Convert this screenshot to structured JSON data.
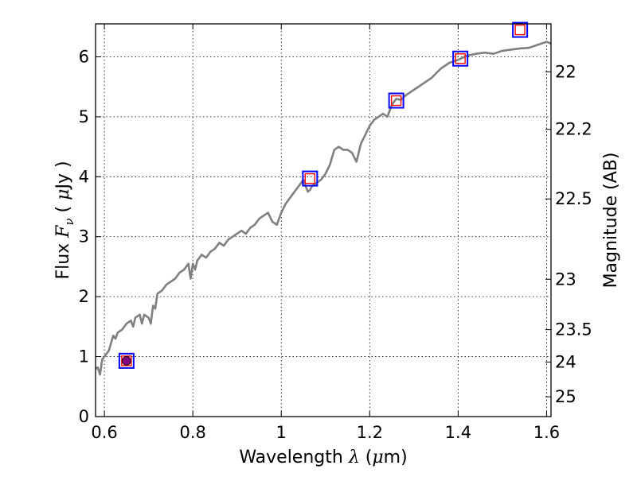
{
  "chart_data": {
    "type": "line",
    "xlabel": "Wavelength  λ (μm)",
    "ylabel": "Flux  F_ν  ( μJy )",
    "y2label": "Magnitude (AB)",
    "xlim": [
      0.58,
      1.61
    ],
    "ylim": [
      0,
      6.55
    ],
    "grid": true,
    "x_ticks": [
      0.6,
      0.8,
      1.0,
      1.2,
      1.4,
      1.6
    ],
    "x_tick_labels": [
      "0.6",
      "0.8",
      "1",
      "1.2",
      "1.4",
      "1.6"
    ],
    "y_ticks": [
      0,
      1,
      2,
      3,
      4,
      5,
      6
    ],
    "y_tick_labels": [
      "0",
      "1",
      "2",
      "3",
      "4",
      "5",
      "6"
    ],
    "y2_ticks": [
      {
        "label": "22",
        "flux": 5.75
      },
      {
        "label": "22.2",
        "flux": 4.79
      },
      {
        "label": "22.5",
        "flux": 3.63
      },
      {
        "label": "23",
        "flux": 2.29
      },
      {
        "label": "23.5",
        "flux": 1.45
      },
      {
        "label": "24",
        "flux": 0.91
      },
      {
        "label": "25",
        "flux": 0.33
      }
    ],
    "series": [
      {
        "style": "line",
        "color": "#808080",
        "x": [
          0.58,
          0.585,
          0.59,
          0.595,
          0.6,
          0.61,
          0.62,
          0.625,
          0.63,
          0.64,
          0.65,
          0.66,
          0.665,
          0.67,
          0.68,
          0.685,
          0.69,
          0.7,
          0.705,
          0.71,
          0.715,
          0.72,
          0.73,
          0.74,
          0.75,
          0.76,
          0.77,
          0.78,
          0.79,
          0.795,
          0.8,
          0.805,
          0.81,
          0.82,
          0.83,
          0.84,
          0.85,
          0.86,
          0.87,
          0.88,
          0.89,
          0.9,
          0.91,
          0.92,
          0.93,
          0.94,
          0.95,
          0.96,
          0.97,
          0.98,
          0.99,
          1.0,
          1.01,
          1.02,
          1.03,
          1.04,
          1.05,
          1.06,
          1.065,
          1.07,
          1.08,
          1.09,
          1.1,
          1.11,
          1.12,
          1.13,
          1.14,
          1.15,
          1.16,
          1.17,
          1.18,
          1.19,
          1.2,
          1.21,
          1.22,
          1.23,
          1.24,
          1.25,
          1.26,
          1.27,
          1.28,
          1.29,
          1.3,
          1.32,
          1.34,
          1.36,
          1.38,
          1.4,
          1.42,
          1.44,
          1.46,
          1.48,
          1.5,
          1.52,
          1.54,
          1.56,
          1.58,
          1.6,
          1.61
        ],
        "y": [
          0.8,
          0.82,
          0.7,
          0.95,
          1.0,
          1.1,
          1.35,
          1.3,
          1.4,
          1.45,
          1.55,
          1.6,
          1.5,
          1.65,
          1.7,
          1.55,
          1.7,
          1.65,
          1.55,
          1.85,
          1.8,
          2.05,
          2.1,
          2.2,
          2.25,
          2.3,
          2.4,
          2.45,
          2.55,
          2.3,
          2.55,
          2.45,
          2.6,
          2.7,
          2.65,
          2.75,
          2.8,
          2.9,
          2.85,
          2.95,
          3.0,
          3.05,
          3.1,
          3.05,
          3.15,
          3.2,
          3.3,
          3.35,
          3.4,
          3.25,
          3.2,
          3.4,
          3.55,
          3.65,
          3.75,
          3.85,
          3.95,
          3.75,
          3.78,
          3.85,
          3.9,
          3.95,
          4.05,
          4.2,
          4.45,
          4.5,
          4.45,
          4.45,
          4.4,
          4.25,
          4.55,
          4.7,
          4.85,
          4.95,
          5.0,
          5.05,
          5.0,
          5.2,
          5.3,
          5.28,
          5.35,
          5.4,
          5.45,
          5.55,
          5.65,
          5.8,
          5.9,
          5.95,
          6.02,
          6.05,
          6.07,
          6.05,
          6.1,
          6.12,
          6.14,
          6.15,
          6.2,
          6.25,
          6.22
        ]
      },
      {
        "style": "square",
        "color": "#0000ff",
        "x": [
          0.65,
          1.065,
          1.26,
          1.405,
          1.54
        ],
        "y": [
          0.93,
          3.97,
          5.27,
          5.97,
          6.45
        ]
      },
      {
        "style": "square-small",
        "color": "#ff0000",
        "x": [
          0.65,
          1.065,
          1.26,
          1.405,
          1.54
        ],
        "y": [
          0.93,
          3.97,
          5.27,
          5.97,
          6.45
        ]
      },
      {
        "style": "errorbar-dot",
        "color": "#800080",
        "x": [
          0.65
        ],
        "y": [
          0.93
        ],
        "yerr": [
          0.07
        ]
      }
    ]
  }
}
